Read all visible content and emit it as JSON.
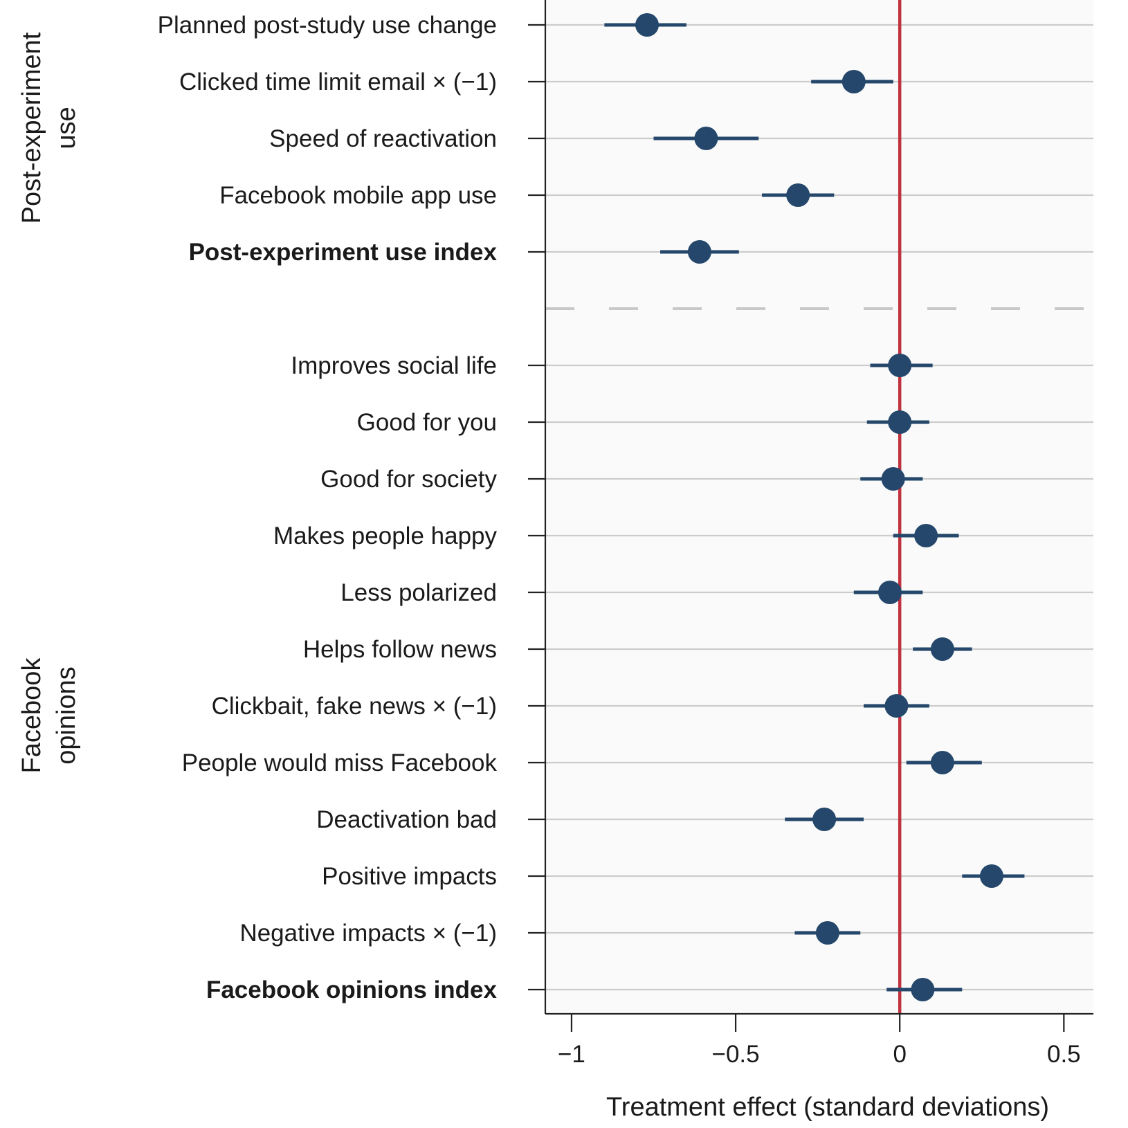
{
  "chart_data": {
    "type": "coefficient-plot",
    "xlabel": "Treatment effect (standard deviations)",
    "xlim": [
      -1.08,
      0.59
    ],
    "xticks": [
      -1,
      -0.5,
      0,
      0.5
    ],
    "xtick_labels": [
      "−1",
      "−0.5",
      "0",
      "0.5"
    ],
    "reference_line": 0,
    "colors": {
      "marker": "#24476b",
      "reference": "#c0323f",
      "grid": "#cccccc",
      "panel": "#fafafa"
    },
    "groups": [
      {
        "title_lines": [
          "Post-experiment",
          "use"
        ],
        "items": [
          {
            "label": "Planned post-study use change",
            "estimate": -0.77,
            "ci": [
              -0.9,
              -0.65
            ],
            "bold": false
          },
          {
            "label": "Clicked time limit email × (−1)",
            "estimate": -0.14,
            "ci": [
              -0.27,
              -0.02
            ],
            "bold": false
          },
          {
            "label": "Speed of reactivation",
            "estimate": -0.59,
            "ci": [
              -0.75,
              -0.43
            ],
            "bold": false
          },
          {
            "label": "Facebook mobile app use",
            "estimate": -0.31,
            "ci": [
              -0.42,
              -0.2
            ],
            "bold": false
          },
          {
            "label": "Post-experiment use index",
            "estimate": -0.61,
            "ci": [
              -0.73,
              -0.49
            ],
            "bold": true
          }
        ]
      },
      {
        "title_lines": [
          "Facebook",
          "opinions"
        ],
        "items": [
          {
            "label": "Improves social life",
            "estimate": 0.0,
            "ci": [
              -0.09,
              0.1
            ],
            "bold": false
          },
          {
            "label": "Good for you",
            "estimate": 0.0,
            "ci": [
              -0.1,
              0.09
            ],
            "bold": false
          },
          {
            "label": "Good for society",
            "estimate": -0.02,
            "ci": [
              -0.12,
              0.07
            ],
            "bold": false
          },
          {
            "label": "Makes people happy",
            "estimate": 0.08,
            "ci": [
              -0.02,
              0.18
            ],
            "bold": false
          },
          {
            "label": "Less polarized",
            "estimate": -0.03,
            "ci": [
              -0.14,
              0.07
            ],
            "bold": false
          },
          {
            "label": "Helps follow news",
            "estimate": 0.13,
            "ci": [
              0.04,
              0.22
            ],
            "bold": false
          },
          {
            "label": "Clickbait, fake news × (−1)",
            "estimate": -0.01,
            "ci": [
              -0.11,
              0.09
            ],
            "bold": false
          },
          {
            "label": "People would miss Facebook",
            "estimate": 0.13,
            "ci": [
              0.02,
              0.25
            ],
            "bold": false
          },
          {
            "label": "Deactivation bad",
            "estimate": -0.23,
            "ci": [
              -0.35,
              -0.11
            ],
            "bold": false
          },
          {
            "label": "Positive impacts",
            "estimate": 0.28,
            "ci": [
              0.19,
              0.38
            ],
            "bold": false
          },
          {
            "label": "Negative impacts × (−1)",
            "estimate": -0.22,
            "ci": [
              -0.32,
              -0.12
            ],
            "bold": false
          },
          {
            "label": "Facebook opinions index",
            "estimate": 0.07,
            "ci": [
              -0.04,
              0.19
            ],
            "bold": true
          }
        ]
      }
    ]
  }
}
